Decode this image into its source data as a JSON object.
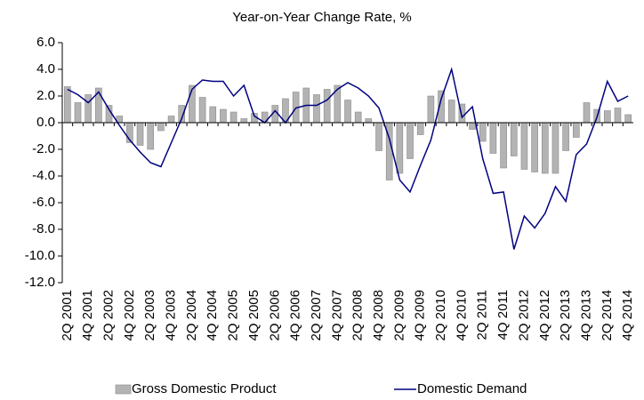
{
  "chart_data": {
    "type": "bar-line",
    "title": "Year-on-Year Change Rate, %",
    "categories": [
      "2Q 2001",
      null,
      "4Q 2001",
      null,
      "2Q 2002",
      null,
      "4Q 2002",
      null,
      "2Q 2003",
      null,
      "4Q 2003",
      null,
      "2Q 2004",
      null,
      "4Q 2004",
      null,
      "2Q 2005",
      null,
      "4Q 2005",
      null,
      "2Q 2006",
      null,
      "4Q 2006",
      null,
      "2Q 2007",
      null,
      "4Q 2007",
      null,
      "2Q 2008",
      null,
      "4Q 2008",
      null,
      "2Q 2009",
      null,
      "4Q 2009",
      null,
      "2Q 2010",
      null,
      "4Q 2010",
      null,
      "2Q 2011",
      null,
      "4Q 2011",
      null,
      "2Q 2012",
      null,
      "4Q 2012",
      null,
      "2Q 2013",
      null,
      "4Q 2013",
      null,
      "2Q 2014",
      null,
      "4Q 2014"
    ],
    "series": [
      {
        "name": "Gross Domestic Product",
        "type": "bar",
        "color": "#b3b3b3",
        "values": [
          2.7,
          1.5,
          2.1,
          2.6,
          1.3,
          0.5,
          -1.5,
          -1.7,
          -2.0,
          -0.6,
          0.5,
          1.3,
          2.8,
          1.9,
          1.2,
          1.0,
          0.8,
          0.3,
          0.7,
          0.8,
          1.3,
          1.8,
          2.3,
          2.6,
          2.1,
          2.5,
          2.8,
          1.7,
          0.8,
          0.3,
          -2.1,
          -4.3,
          -3.8,
          -2.7,
          -0.9,
          2.0,
          2.4,
          1.7,
          1.4,
          -0.5,
          -1.4,
          -2.3,
          -3.4,
          -2.5,
          -3.5,
          -3.7,
          -3.8,
          -3.8,
          -2.1,
          -1.1,
          1.5,
          1.0,
          0.9,
          1.1,
          0.6
        ]
      },
      {
        "name": "Domestic Demand",
        "type": "line",
        "color": "#000080",
        "values": [
          2.5,
          2.1,
          1.5,
          2.3,
          1.0,
          -0.2,
          -1.3,
          -2.2,
          -3.0,
          -3.3,
          -1.5,
          0.3,
          2.5,
          3.2,
          3.1,
          3.1,
          2.0,
          2.8,
          0.5,
          0.0,
          0.9,
          0.0,
          1.1,
          1.3,
          1.3,
          1.7,
          2.5,
          3.0,
          2.6,
          2.0,
          1.1,
          -1.2,
          -4.3,
          -5.2,
          -3.2,
          -1.3,
          1.8,
          4.0,
          0.4,
          1.2,
          -2.7,
          -5.3,
          -5.2,
          -9.5,
          -7.0,
          -7.9,
          -6.8,
          -4.8,
          -5.9,
          -2.4,
          -1.6,
          0.4,
          3.1,
          1.6,
          2.0
        ]
      }
    ],
    "ylim": [
      -12,
      6
    ],
    "yticks": [
      {
        "value": -12,
        "label": "-12.0"
      },
      {
        "value": -10,
        "label": "-10.0"
      },
      {
        "value": -8,
        "label": "-8.0"
      },
      {
        "value": -6,
        "label": "-6.0"
      },
      {
        "value": -4,
        "label": "-4.0"
      },
      {
        "value": -2,
        "label": "-2.0"
      },
      {
        "value": 0,
        "label": "0.0"
      },
      {
        "value": 2,
        "label": "2.0"
      },
      {
        "value": 4,
        "label": "4.0"
      },
      {
        "value": 6,
        "label": "6.0"
      }
    ],
    "legend": "bottom"
  }
}
